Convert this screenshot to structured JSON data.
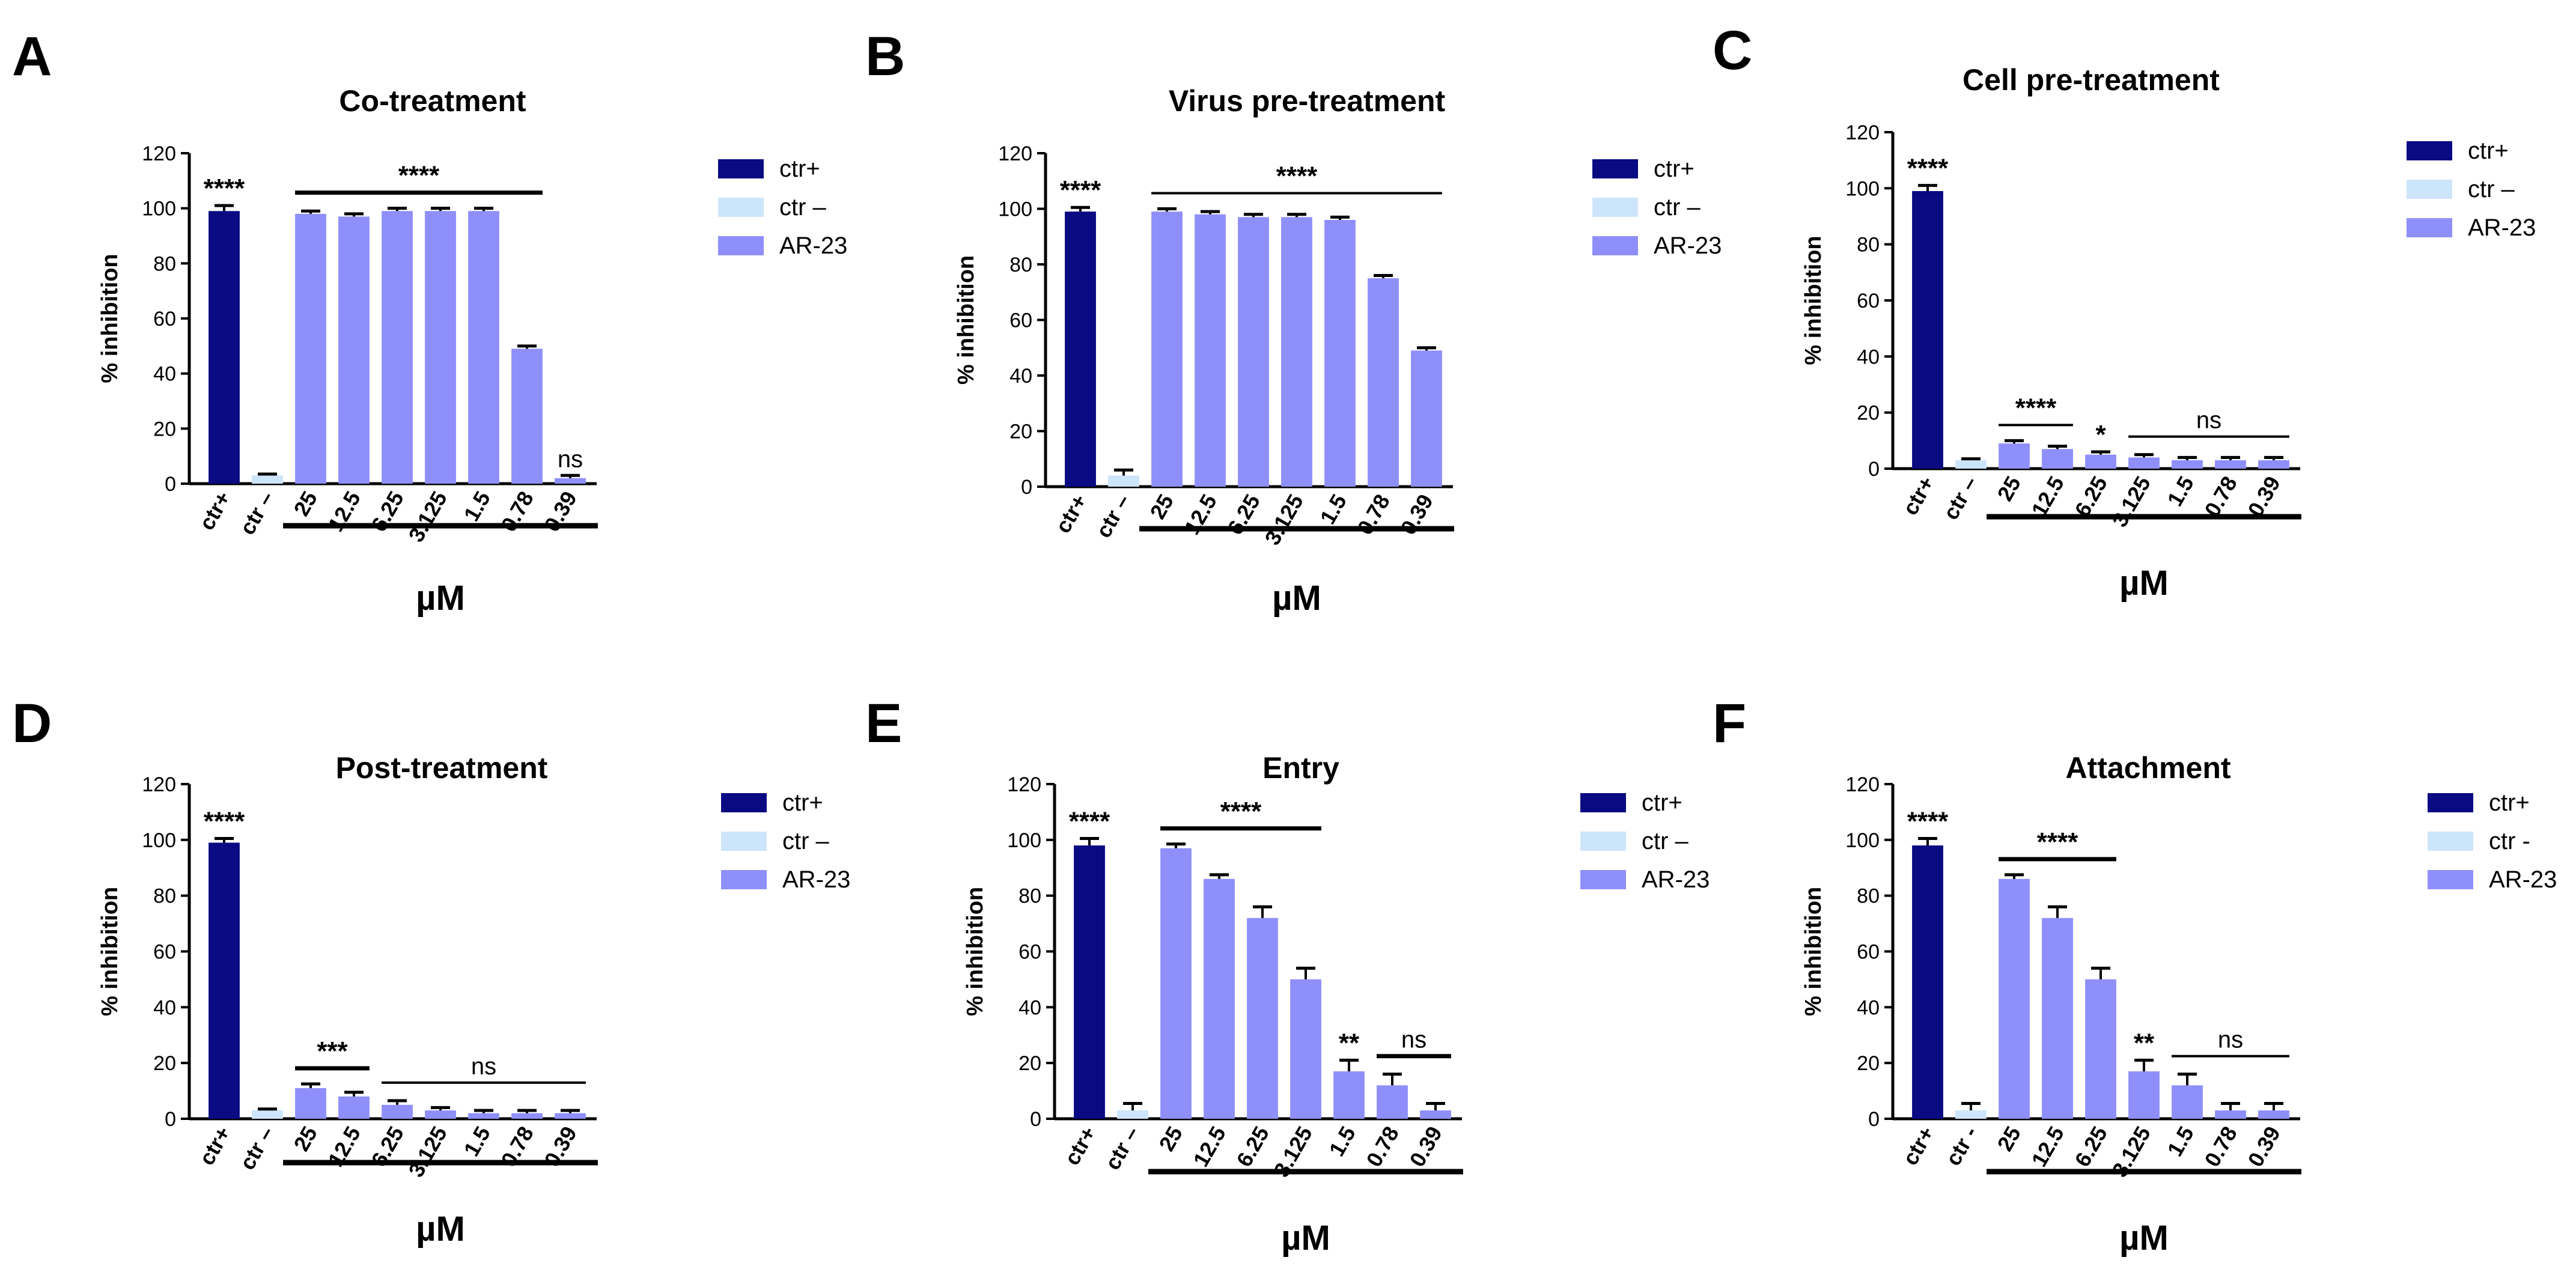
{
  "colors": {
    "ctr_pos": "#0a0a82",
    "ctr_neg": "#cde5fb",
    "ar23": "#8f8ffb",
    "axis": "#000000"
  },
  "chart_data": [
    {
      "type": "bar",
      "panel": "A",
      "title": "Co-treatment",
      "ylabel": "% inhibition",
      "xlabel": "µM",
      "ylim": [
        0,
        120
      ],
      "yticks": [
        "0",
        "20",
        "40",
        "60",
        "80",
        "100",
        "120"
      ],
      "categories": [
        "ctr+",
        "ctr –",
        "25",
        "12.5",
        "6.25",
        "3.125",
        "1.5",
        "0.78",
        "0.39"
      ],
      "groups": [
        "ctr+",
        "ctr-",
        "AR-23",
        "AR-23",
        "AR-23",
        "AR-23",
        "AR-23",
        "AR-23",
        "AR-23"
      ],
      "values": [
        99,
        3,
        98,
        97,
        99,
        99,
        99,
        49,
        2
      ],
      "errors": [
        2,
        0.5,
        1,
        1,
        1,
        1,
        1,
        1,
        1
      ],
      "legend": [
        "ctr+",
        "ctr –",
        "AR-23"
      ],
      "single_labels": [
        {
          "text": "****",
          "index": 0
        },
        {
          "text": "ns",
          "index": 8
        }
      ],
      "sig_lines": [
        {
          "text": "****",
          "from": 2,
          "to": 7,
          "thick": true
        }
      ]
    },
    {
      "type": "bar",
      "panel": "B",
      "title": "Virus pre-treatment",
      "ylabel": "% inhibition",
      "xlabel": "µM",
      "ylim": [
        0,
        120
      ],
      "yticks": [
        "0",
        "20",
        "40",
        "60",
        "80",
        "100",
        "120"
      ],
      "categories": [
        "ctr+",
        "ctr –",
        "25",
        "12.5",
        "6.25",
        "3.125",
        "1.5",
        "0.78",
        "0.39"
      ],
      "groups": [
        "ctr+",
        "ctr-",
        "AR-23",
        "AR-23",
        "AR-23",
        "AR-23",
        "AR-23",
        "AR-23",
        "AR-23"
      ],
      "values": [
        99,
        4,
        99,
        98,
        97,
        97,
        96,
        75,
        49
      ],
      "errors": [
        1.5,
        2,
        1,
        1,
        1,
        1,
        1,
        1,
        1
      ],
      "legend": [
        "ctr+",
        "ctr –",
        "AR-23"
      ],
      "single_labels": [
        {
          "text": "****",
          "index": 0
        }
      ],
      "sig_lines": [
        {
          "text": "****",
          "from": 2,
          "to": 8,
          "thick": false
        }
      ]
    },
    {
      "type": "bar",
      "panel": "C",
      "title": "Cell pre-treatment",
      "ylabel": "% inhibition",
      "xlabel": "µM",
      "ylim": [
        0,
        120
      ],
      "yticks": [
        "0",
        "20",
        "40",
        "60",
        "80",
        "100",
        "120"
      ],
      "categories": [
        "ctr+",
        "ctr –",
        "25",
        "12.5",
        "6.25",
        "3.125",
        "1.5",
        "0.78",
        "0.39"
      ],
      "groups": [
        "ctr+",
        "ctr-",
        "AR-23",
        "AR-23",
        "AR-23",
        "AR-23",
        "AR-23",
        "AR-23",
        "AR-23"
      ],
      "values": [
        99,
        3,
        9,
        7,
        5,
        4,
        3,
        3,
        3
      ],
      "errors": [
        2,
        0.5,
        1,
        1,
        1,
        1,
        1,
        1,
        1
      ],
      "legend": [
        "ctr+",
        "ctr –",
        "AR-23"
      ],
      "single_labels": [
        {
          "text": "****",
          "index": 0
        },
        {
          "text": "*",
          "index": 4
        }
      ],
      "sig_lines": [
        {
          "text": "****",
          "from": 2,
          "to": 3,
          "thick": false
        },
        {
          "text": "ns",
          "from": 5,
          "to": 8,
          "thick": false
        }
      ]
    },
    {
      "type": "bar",
      "panel": "D",
      "title": "Post-treatment",
      "ylabel": "% inhibition",
      "xlabel": "µM",
      "ylim": [
        0,
        120
      ],
      "yticks": [
        "0",
        "20",
        "40",
        "60",
        "80",
        "100",
        "120"
      ],
      "categories": [
        "ctr+",
        "ctr –",
        "25",
        "12.5",
        "6.25",
        "3.125",
        "1.5",
        "0.78",
        "0.39"
      ],
      "groups": [
        "ctr+",
        "ctr-",
        "AR-23",
        "AR-23",
        "AR-23",
        "AR-23",
        "AR-23",
        "AR-23",
        "AR-23"
      ],
      "values": [
        99,
        3,
        11,
        8,
        5,
        3,
        2,
        2,
        2
      ],
      "errors": [
        1.5,
        0.5,
        1.5,
        1.5,
        1.5,
        1,
        1,
        1,
        1
      ],
      "legend": [
        "ctr+",
        "ctr –",
        "AR-23"
      ],
      "single_labels": [
        {
          "text": "****",
          "index": 0
        }
      ],
      "sig_lines": [
        {
          "text": "***",
          "from": 2,
          "to": 3,
          "thick": true
        },
        {
          "text": "ns",
          "from": 4,
          "to": 8,
          "thick": false
        }
      ]
    },
    {
      "type": "bar",
      "panel": "E",
      "title": "Entry",
      "ylabel": "% inhibition",
      "xlabel": "µM",
      "ylim": [
        0,
        120
      ],
      "yticks": [
        "0",
        "20",
        "40",
        "60",
        "80",
        "100",
        "120"
      ],
      "categories": [
        "ctr+",
        "ctr –",
        "25",
        "12.5",
        "6.25",
        "3.125",
        "1.5",
        "0.78",
        "0.39"
      ],
      "groups": [
        "ctr+",
        "ctr-",
        "AR-23",
        "AR-23",
        "AR-23",
        "AR-23",
        "AR-23",
        "AR-23",
        "AR-23"
      ],
      "values": [
        98,
        3,
        97,
        86,
        72,
        50,
        17,
        12,
        3
      ],
      "errors": [
        2.5,
        2.5,
        1.5,
        1.5,
        4,
        4,
        4,
        4,
        2.5
      ],
      "legend": [
        "ctr+",
        "ctr –",
        "AR-23"
      ],
      "single_labels": [
        {
          "text": "****",
          "index": 0
        },
        {
          "text": "**",
          "index": 6
        }
      ],
      "sig_lines": [
        {
          "text": "****",
          "from": 2,
          "to": 5,
          "thick": true
        },
        {
          "text": "ns",
          "from": 7,
          "to": 8,
          "thick": true
        }
      ]
    },
    {
      "type": "bar",
      "panel": "F",
      "title": "Attachment",
      "ylabel": "% inhibition",
      "xlabel": "µM",
      "ylim": [
        0,
        120
      ],
      "yticks": [
        "0",
        "20",
        "40",
        "60",
        "80",
        "100",
        "120"
      ],
      "categories": [
        "ctr+",
        "ctr -",
        "25",
        "12.5",
        "6.25",
        "3.125",
        "1.5",
        "0.78",
        "0.39"
      ],
      "groups": [
        "ctr+",
        "ctr-",
        "AR-23",
        "AR-23",
        "AR-23",
        "AR-23",
        "AR-23",
        "AR-23",
        "AR-23"
      ],
      "values": [
        98,
        3,
        86,
        72,
        50,
        17,
        12,
        3,
        3
      ],
      "errors": [
        2.5,
        2.5,
        1.5,
        4,
        4,
        4,
        4,
        2.5,
        2.5
      ],
      "legend": [
        "ctr+",
        "ctr -",
        "AR-23"
      ],
      "single_labels": [
        {
          "text": "****",
          "index": 0
        },
        {
          "text": "**",
          "index": 5
        }
      ],
      "sig_lines": [
        {
          "text": "****",
          "from": 2,
          "to": 4,
          "thick": true
        },
        {
          "text": "ns",
          "from": 6,
          "to": 8,
          "thick": false
        }
      ]
    }
  ]
}
